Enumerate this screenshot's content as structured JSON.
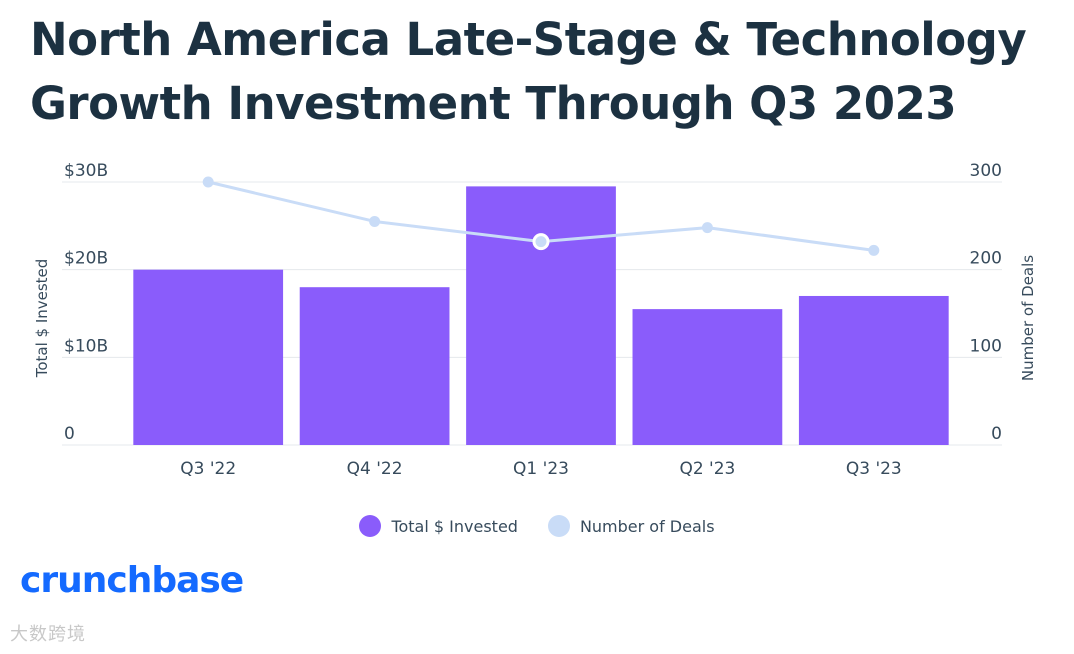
{
  "colors": {
    "bar": "#8a5cfb",
    "line": "#c9dcf7",
    "title": "#1c3141",
    "brand": "#146aff"
  },
  "chart_data": {
    "type": "bar",
    "title": "North America Late-Stage & Technology Growth Investment Through Q3 2023",
    "categories": [
      "Q3 '22",
      "Q4 '22",
      "Q1 '23",
      "Q2 '23",
      "Q3 '23"
    ],
    "series": [
      {
        "name": "Total $ Invested",
        "type": "bar",
        "axis": "left",
        "unit": "$B",
        "values": [
          20,
          18,
          29.5,
          15.5,
          17
        ]
      },
      {
        "name": "Number of Deals",
        "type": "line",
        "axis": "right",
        "values": [
          300,
          255,
          232,
          248,
          222
        ]
      }
    ],
    "ylabel": "Total $ Invested",
    "y2label": "Number of Deals",
    "ylim": [
      0,
      30
    ],
    "y2lim": [
      0,
      300
    ],
    "yticks": [
      "0",
      "$10B",
      "$20B",
      "$30B"
    ],
    "y2ticks": [
      "0",
      "100",
      "200",
      "300"
    ],
    "highlight_index": 2,
    "legend": [
      "Total $ Invested",
      "Number of Deals"
    ],
    "grid": true
  },
  "brand": "crunchbase",
  "watermark": "大数跨境"
}
